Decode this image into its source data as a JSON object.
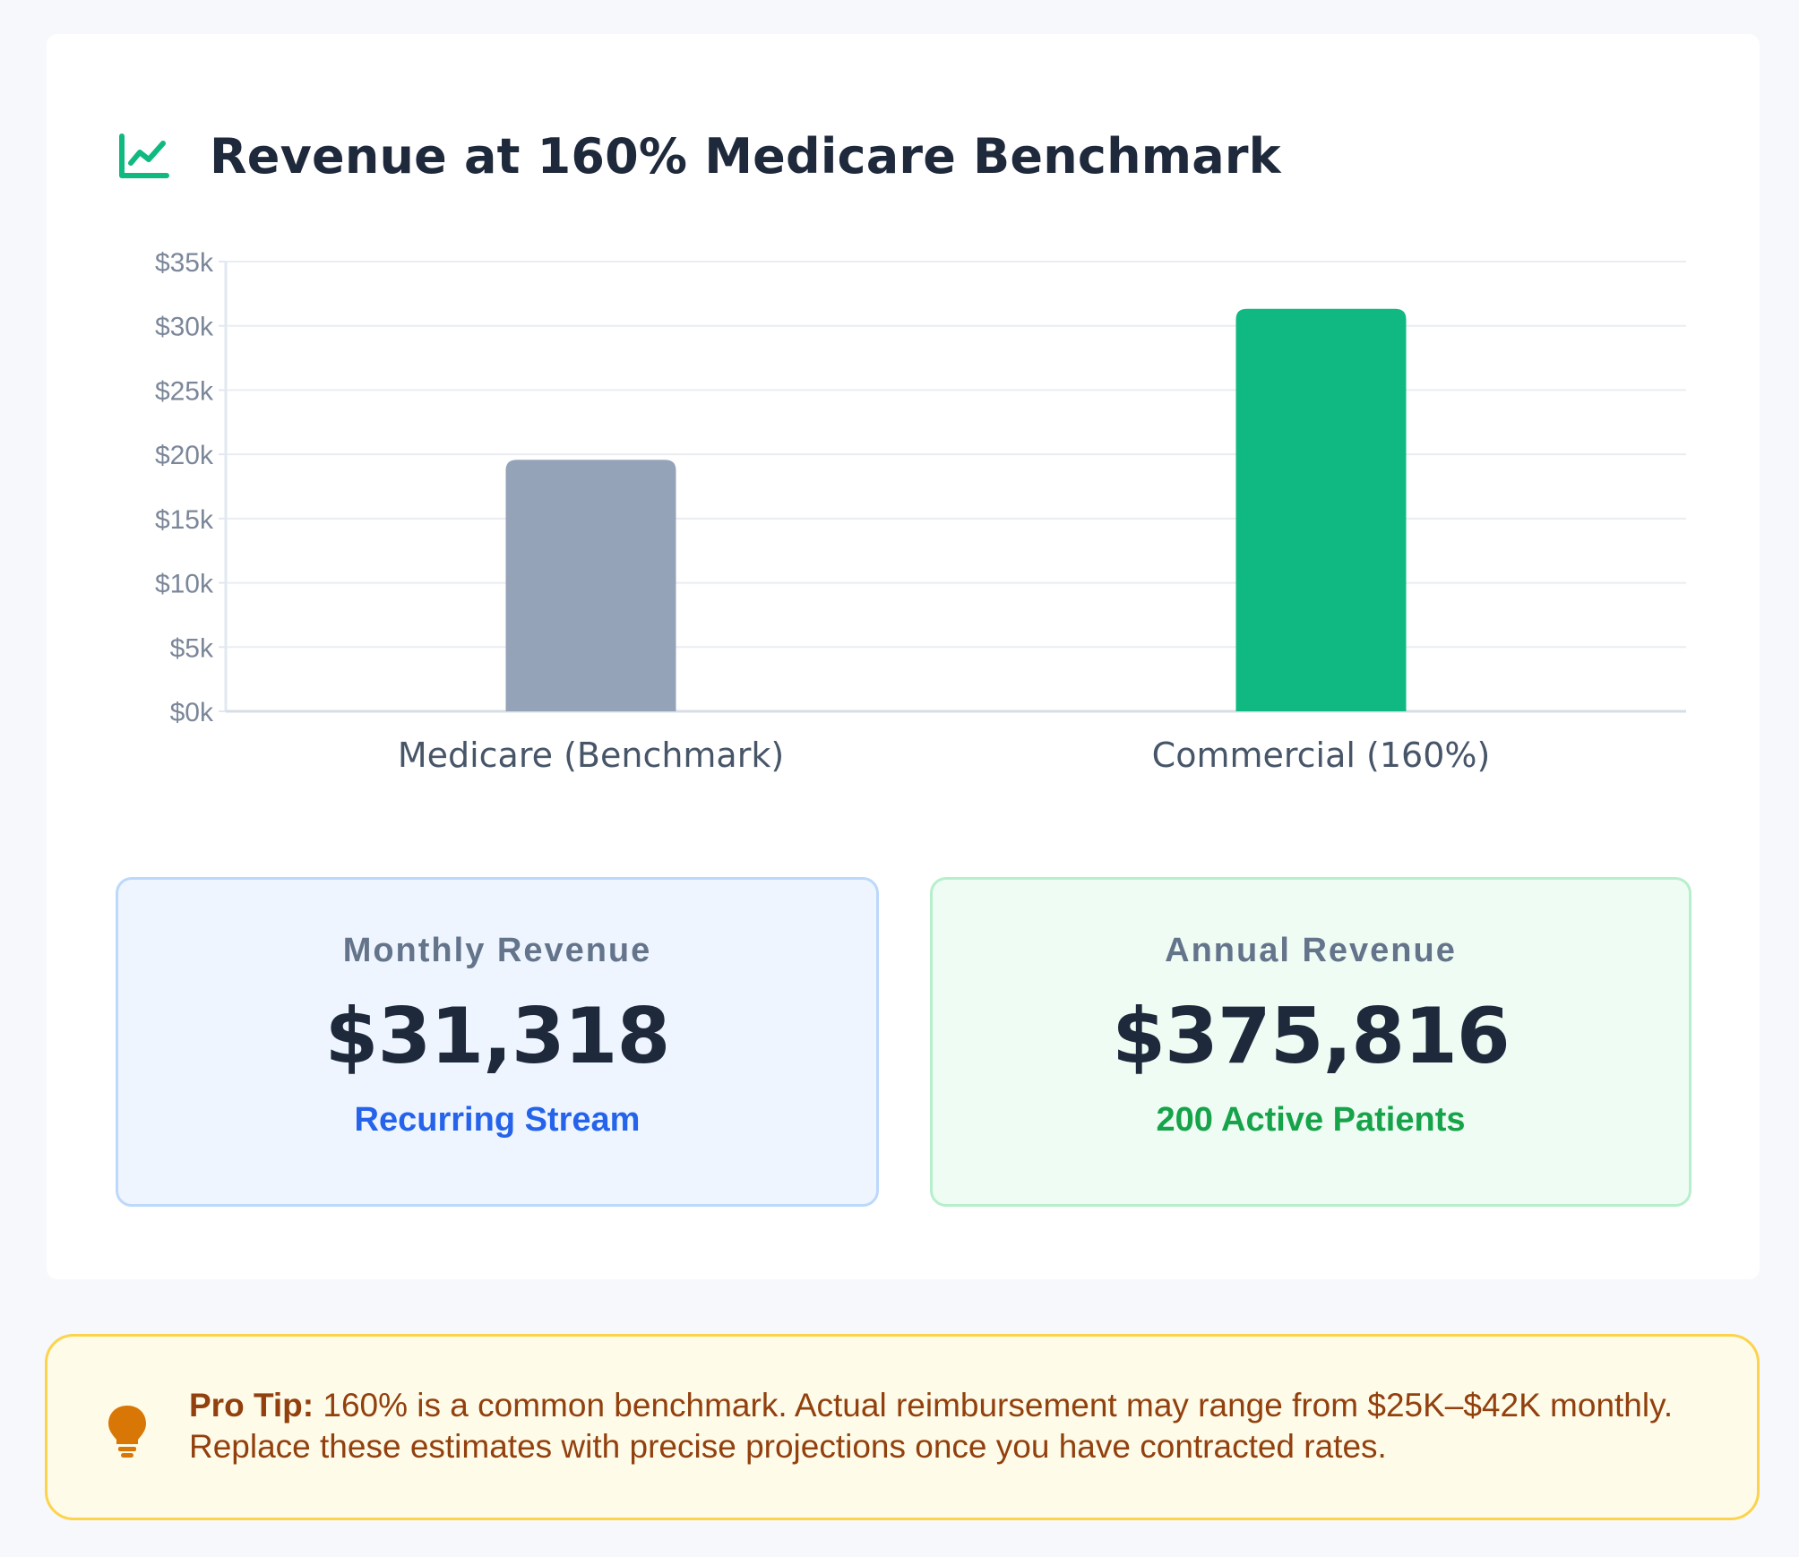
{
  "header": {
    "title": "Revenue at 160% Medicare Benchmark",
    "icon": "chart-line-icon",
    "icon_color": "#10b981"
  },
  "chart_data": {
    "type": "bar",
    "categories": [
      "Medicare (Benchmark)",
      "Commercial (160%)"
    ],
    "values": [
      19573,
      31318
    ],
    "colors": [
      "#94a3b8",
      "#10b981"
    ],
    "ylim": [
      0,
      35000
    ],
    "yticks": [
      {
        "value": 0,
        "label": "$0k"
      },
      {
        "value": 5000,
        "label": "$5k"
      },
      {
        "value": 10000,
        "label": "$10k"
      },
      {
        "value": 15000,
        "label": "$15k"
      },
      {
        "value": 20000,
        "label": "$20k"
      },
      {
        "value": 25000,
        "label": "$25k"
      },
      {
        "value": 30000,
        "label": "$30k"
      },
      {
        "value": 35000,
        "label": "$35k"
      }
    ],
    "grid": true,
    "legend": "none"
  },
  "stats": {
    "monthly": {
      "label": "Monthly Revenue",
      "value": "$31,318",
      "sub": "Recurring Stream"
    },
    "annual": {
      "label": "Annual Revenue",
      "value": "$375,816",
      "sub": "200 Active Patients"
    }
  },
  "tip": {
    "icon": "lightbulb-icon",
    "label": "Pro Tip:",
    "text": " 160% is a common benchmark. Actual reimbursement may range from $25K–$42K monthly. Replace these estimates with precise projections once you have contracted rates."
  }
}
